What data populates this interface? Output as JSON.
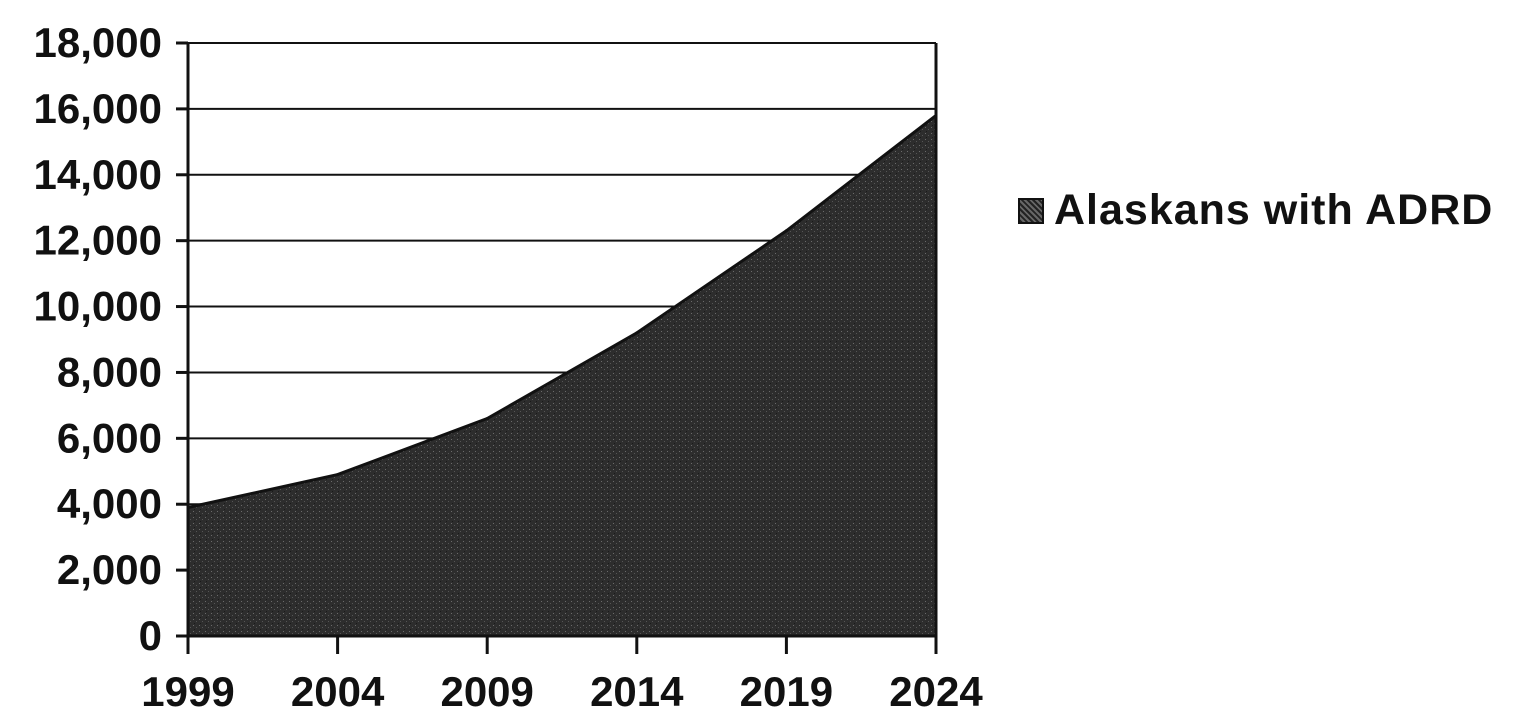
{
  "chart_data": {
    "type": "area",
    "title": "",
    "xlabel": "",
    "ylabel": "",
    "x": [
      1999,
      2004,
      2009,
      2014,
      2019,
      2024
    ],
    "series": [
      {
        "name": "Alaskans with ADRD",
        "values": [
          3900,
          4900,
          6600,
          9200,
          12300,
          15800
        ]
      }
    ],
    "ylim": [
      0,
      18000
    ],
    "xlim": [
      1999,
      2024
    ],
    "y_ticks": [
      0,
      2000,
      4000,
      6000,
      8000,
      10000,
      12000,
      14000,
      16000,
      18000
    ],
    "y_tick_labels": [
      "0",
      "2,000",
      "4,000",
      "6,000",
      "8,000",
      "10,000",
      "12,000",
      "14,000",
      "16,000",
      "18,000"
    ],
    "x_tick_labels": [
      "1999",
      "2004",
      "2009",
      "2014",
      "2019",
      "2024"
    ],
    "grid": true,
    "legend": {
      "position": "right",
      "label": "Alaskans with ADRD"
    },
    "colors": {
      "area": "#2b2b2b",
      "grid": "#111111",
      "text": "#111111"
    }
  }
}
